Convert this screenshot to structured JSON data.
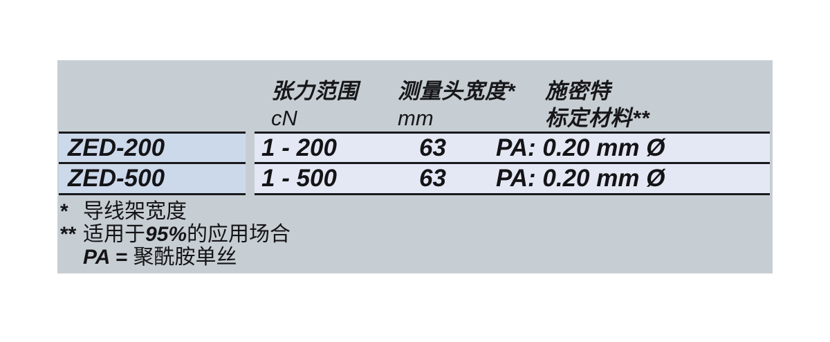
{
  "table": {
    "columns": [
      {
        "line1": "",
        "line2": ""
      },
      {
        "line1": "张力范围",
        "line2": "cN"
      },
      {
        "line1": "测量头宽度*",
        "line2": "mm"
      },
      {
        "line1": "施密特",
        "line2": "标定材料**"
      }
    ],
    "rows": [
      {
        "model": "ZED-200",
        "range": "1 - 200",
        "width": "63",
        "calibration": "PA: 0.20 mm Ø"
      },
      {
        "model": "ZED-500",
        "range": "1 - 500",
        "width": "63",
        "calibration": "PA: 0.20 mm Ø"
      }
    ]
  },
  "footnotes": [
    {
      "marker": "*",
      "text": "导线架宽度"
    },
    {
      "marker": "**",
      "prefix": "适用于",
      "em": "95%",
      "suffix": "的应用场合"
    },
    {
      "marker": "",
      "em": "PA = ",
      "suffix": "聚酰胺单丝"
    }
  ],
  "colors": {
    "panel_bg": "#c7ced3",
    "row_left_bg": "#ccd9eb",
    "row_right_bg": "#e4e8f4",
    "rule": "#18181b",
    "text": "#141417"
  }
}
